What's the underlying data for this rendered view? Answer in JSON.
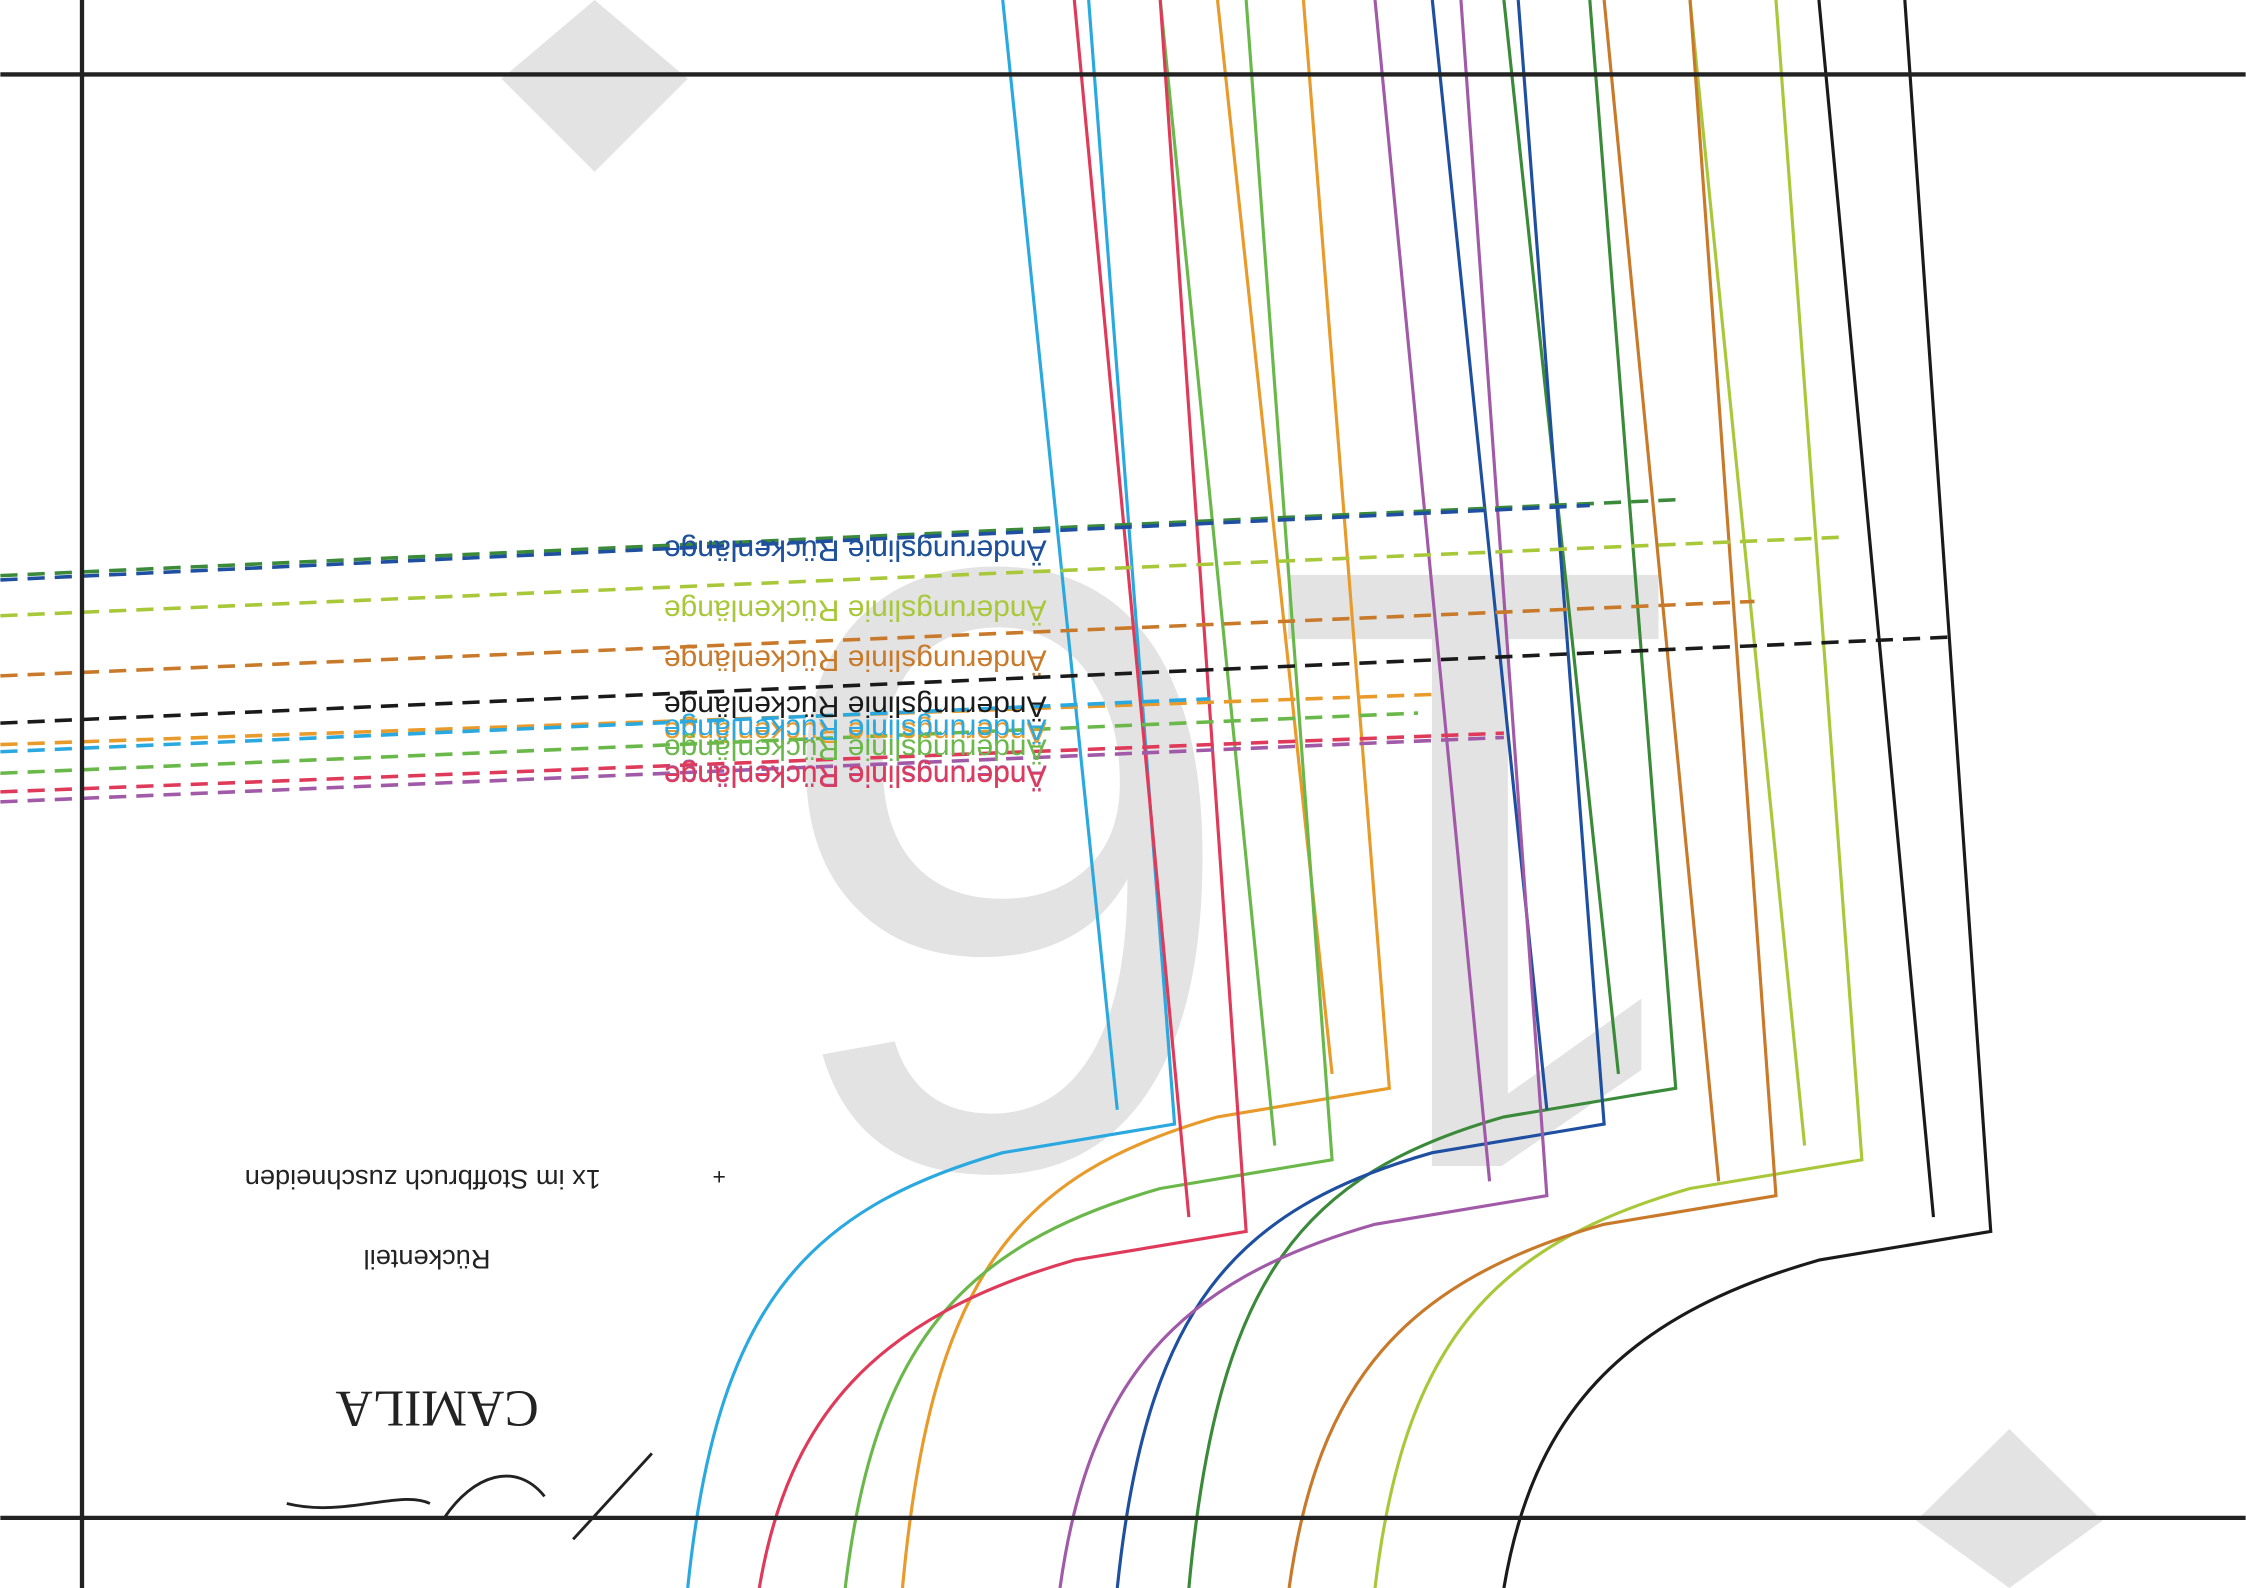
{
  "page_number": "16",
  "labels": [
    {
      "text": "Änderungslinie Rückenlänge",
      "color": "#3a8a3a"
    },
    {
      "text": "Änderungslinie Rückenlänge",
      "color": "#1f4fa0"
    },
    {
      "text": "Änderungslinie Rückenlänge",
      "color": "#a8c83a"
    },
    {
      "text": "Änderungslinie Rückenlänge",
      "color": "#c87a2a"
    },
    {
      "text": "Änderungslinie Rückenlänge",
      "color": "#1a1a1a"
    },
    {
      "text": "Änderungslinie Rückenlänge",
      "color": "#e89a2a"
    },
    {
      "text": "Änderungslinie Rückenlänge",
      "color": "#2aa8e0"
    },
    {
      "text": "Änderungslinie Rückenlänge",
      "color": "#6ab84a"
    },
    {
      "text": "Änderungslinie Rückenlänge",
      "color": "#a05aa8"
    },
    {
      "text": "Änderungslinie Rückenlänge",
      "color": "#e03a5a"
    }
  ],
  "cutting_note": "1x im Stoffbruch zuschneiden",
  "piece_name": "Rückenteil",
  "pattern_name": "CAMILA"
}
